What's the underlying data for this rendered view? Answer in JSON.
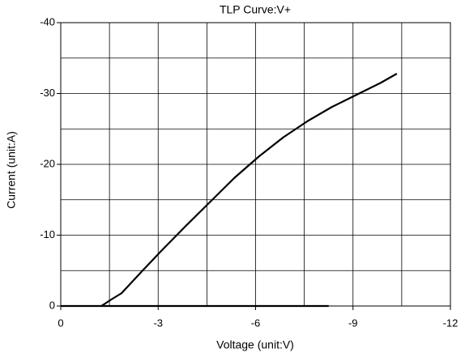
{
  "chart_data": {
    "type": "line",
    "title": "TLP Curve:V+",
    "xlabel": "Voltage (unit:V)",
    "ylabel": "Current (unit:A)",
    "xlim": [
      0,
      -12
    ],
    "ylim": [
      0,
      -40
    ],
    "xticks": [
      0,
      -3,
      -6,
      -9,
      -12
    ],
    "yticks": [
      0,
      -10,
      -20,
      -30,
      -40
    ],
    "xminor": [
      -1.5,
      -4.5,
      -7.5,
      -10.5
    ],
    "yminor": [
      -5,
      -15,
      -25,
      -35
    ],
    "grid": true,
    "series": [
      {
        "color": "#000000",
        "x": [
          -1.25,
          -1.55,
          -1.87,
          -2.5,
          -3.1,
          -3.85,
          -4.6,
          -5.35,
          -6.1,
          -6.85,
          -7.6,
          -8.35,
          -9.1,
          -9.85,
          -10.35
        ],
        "values": [
          0,
          -0.9,
          -1.8,
          -4.9,
          -7.8,
          -11.3,
          -14.7,
          -18.1,
          -21.1,
          -23.8,
          -26.1,
          -28.1,
          -29.8,
          -31.5,
          -32.8
        ]
      },
      {
        "color": "#000000",
        "x": [
          0,
          -4,
          -8.25
        ],
        "values": [
          0,
          0,
          0
        ]
      }
    ]
  }
}
